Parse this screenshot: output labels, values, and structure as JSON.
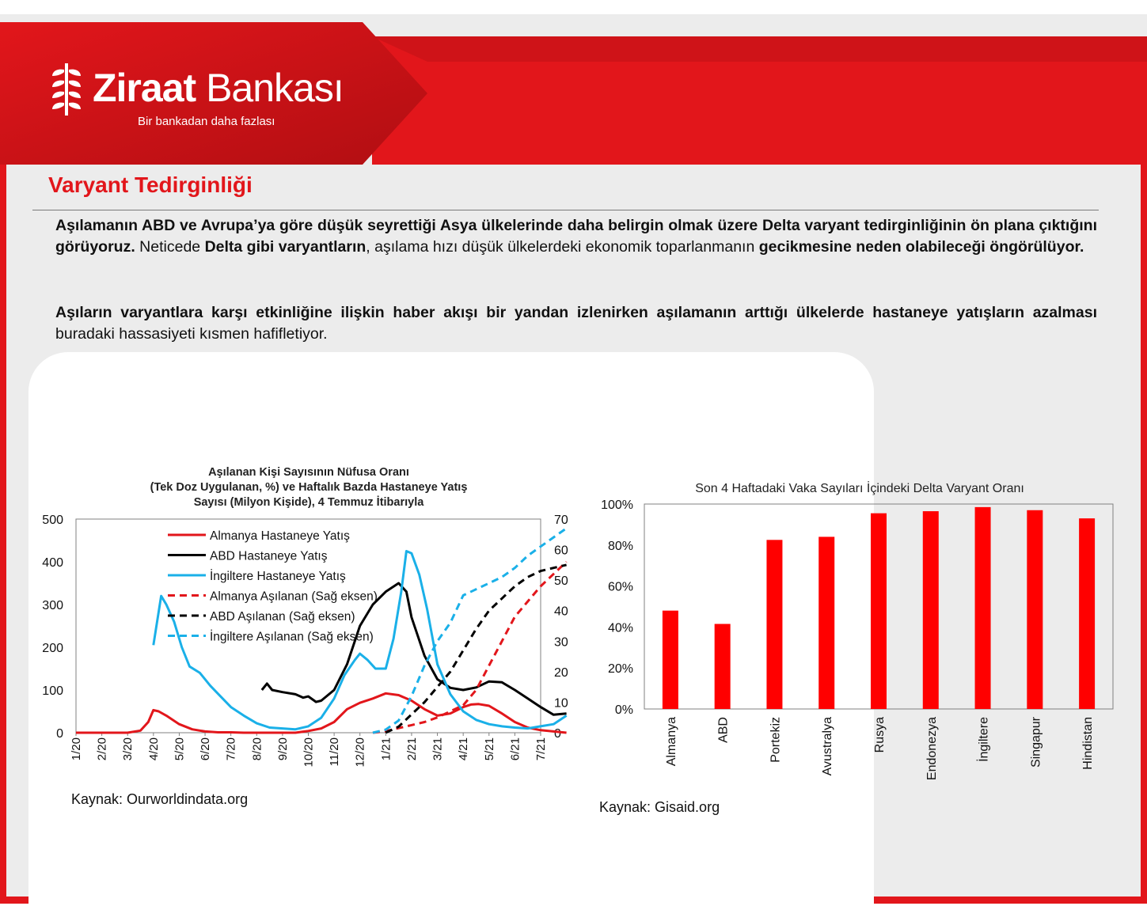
{
  "brand": {
    "bold": "Ziraat",
    "rest": " Bankası",
    "slogan": "Bir bankadan daha fazlası"
  },
  "title": "Varyant Tedirginliği",
  "paragraph1": [
    {
      "t": "Aşılamanın ABD ve Avrupa’ya göre düşük seyrettiği Asya ülkelerinde daha belirgin olmak üzere Delta varyant tedirginliğinin ön plana çıktığını görüyoruz.",
      "b": true
    },
    {
      "t": " Neticede ",
      "b": false
    },
    {
      "t": "Delta gibi varyantların",
      "b": true
    },
    {
      "t": ", aşılama hızı düşük ülkelerdeki ekonomik toparlanmanın ",
      "b": false
    },
    {
      "t": "gecikmesine neden olabileceği öngörülüyor.",
      "b": true
    }
  ],
  "paragraph2": [
    {
      "t": "Aşıların varyantlara karşı etkinliğine ilişkin haber akışı bir yandan izlenirken aşılamanın arttığı ülkelerde hastaneye yatışların azalması",
      "b": true
    },
    {
      "t": " buradaki hassasiyeti kısmen hafifletiyor.",
      "b": false
    }
  ],
  "source_left": "Kaynak: Ourworldindata.org",
  "source_right": "Kaynak: Gisaid.org",
  "colors": {
    "red": "#e2161b",
    "black": "#000000",
    "blue": "#1ab0e8",
    "bar": "#ff0000"
  },
  "chart_data": [
    {
      "type": "line",
      "title": [
        "Aşılanan Kişi Sayısının Nüfusa Oranı",
        "(Tek Doz Uygulanan, %) ve Haftalık Bazda Hastaneye Yatış",
        "Sayısı (Milyon Kişide), 4 Temmuz İtibarıyla"
      ],
      "categories": [
        "1/20",
        "2/20",
        "3/20",
        "4/20",
        "5/20",
        "6/20",
        "7/20",
        "8/20",
        "9/20",
        "10/20",
        "11/20",
        "12/20",
        "1/21",
        "2/21",
        "3/21",
        "4/21",
        "5/21",
        "6/21",
        "7/21"
      ],
      "ylim_left": [
        0,
        500
      ],
      "yticks_left": [
        0,
        100,
        200,
        300,
        400,
        500
      ],
      "ylim_right": [
        0,
        70
      ],
      "yticks_right": [
        0,
        10,
        20,
        30,
        40,
        50,
        60,
        70
      ],
      "legend_position": "top-left",
      "series": [
        {
          "name": "Almanya Hastaneye Yatış",
          "axis": "left",
          "dash": false,
          "color": "#e2161b",
          "x": [
            0,
            1,
            2,
            2.5,
            2.8,
            3,
            3.2,
            3.5,
            4,
            4.5,
            5,
            5.5,
            6,
            6.5,
            7,
            7.5,
            8,
            8.5,
            9,
            9.5,
            10,
            10.5,
            11,
            11.5,
            12,
            12.5,
            13,
            13.5,
            14,
            14.5,
            15,
            15.3,
            15.6,
            16,
            16.5,
            17,
            17.5,
            18,
            18.5,
            19
          ],
          "y": [
            0,
            0,
            0,
            5,
            25,
            53,
            50,
            40,
            20,
            8,
            3,
            1,
            1,
            0,
            0,
            0,
            0,
            0,
            4,
            10,
            25,
            55,
            70,
            80,
            92,
            88,
            75,
            55,
            40,
            45,
            60,
            66,
            67,
            63,
            45,
            25,
            12,
            6,
            3,
            0
          ]
        },
        {
          "name": "ABD Hastaneye Yatış",
          "axis": "left",
          "dash": false,
          "color": "#000000",
          "x": [
            7.2,
            7.4,
            7.6,
            8,
            8.5,
            8.8,
            9,
            9.3,
            9.5,
            10,
            10.5,
            11,
            11.5,
            12,
            12.5,
            12.8,
            13,
            13.5,
            14,
            14.5,
            15,
            15.5,
            16,
            16.5,
            17,
            17.5,
            18,
            18.5,
            19
          ],
          "y": [
            100,
            115,
            100,
            95,
            90,
            82,
            85,
            72,
            75,
            100,
            160,
            250,
            300,
            330,
            350,
            330,
            270,
            180,
            125,
            105,
            100,
            106,
            120,
            118,
            100,
            80,
            60,
            42,
            45
          ]
        },
        {
          "name": "İngiltere Hastaneye Yatış",
          "axis": "left",
          "dash": false,
          "color": "#1ab0e8",
          "x": [
            3,
            3.3,
            3.5,
            3.8,
            4.1,
            4.4,
            4.8,
            5.2,
            5.6,
            6,
            6.5,
            7,
            7.5,
            8,
            8.5,
            9,
            9.5,
            10,
            10.4,
            10.8,
            11,
            11.3,
            11.6,
            12,
            12.3,
            12.6,
            12.8,
            13,
            13.3,
            13.6,
            14,
            14.5,
            15,
            15.5,
            16,
            16.5,
            17,
            17.5,
            18,
            18.5,
            19
          ],
          "y": [
            205,
            320,
            300,
            260,
            200,
            155,
            140,
            110,
            85,
            60,
            40,
            22,
            12,
            10,
            8,
            15,
            35,
            80,
            135,
            170,
            185,
            170,
            150,
            150,
            220,
            330,
            425,
            420,
            370,
            290,
            160,
            90,
            50,
            30,
            20,
            15,
            12,
            10,
            15,
            20,
            40
          ]
        },
        {
          "name": "Almanya Aşılanan (Sağ eksen)",
          "axis": "right",
          "dash": true,
          "color": "#e2161b",
          "x": [
            11.5,
            12,
            12.5,
            13,
            13.5,
            14,
            14.5,
            15,
            15.5,
            16,
            16.5,
            17,
            17.5,
            18,
            18.5,
            19
          ],
          "y": [
            0,
            0.5,
            1.5,
            2.5,
            3.5,
            5,
            7,
            9,
            14,
            22,
            30,
            38,
            43,
            48,
            52,
            56
          ]
        },
        {
          "name": "ABD Aşılanan (Sağ eksen)",
          "axis": "right",
          "dash": true,
          "color": "#000000",
          "x": [
            12,
            12.5,
            13,
            13.5,
            14,
            14.5,
            15,
            15.5,
            16,
            16.5,
            17,
            17.5,
            18,
            18.5,
            19
          ],
          "y": [
            0,
            2,
            6,
            10,
            15,
            20,
            27,
            34,
            40,
            44,
            48,
            51,
            53,
            54,
            55
          ]
        },
        {
          "name": "İngiltere Aşılanan (Sağ eksen)",
          "axis": "right",
          "dash": true,
          "color": "#1ab0e8",
          "x": [
            11.5,
            12,
            12.5,
            13,
            13.5,
            14,
            14.5,
            15,
            15.5,
            16,
            16.5,
            17,
            17.5,
            18,
            18.5,
            19
          ],
          "y": [
            0,
            1,
            4,
            12,
            22,
            30,
            36,
            45,
            47,
            49,
            51,
            54,
            58,
            61,
            64,
            67
          ]
        }
      ]
    },
    {
      "type": "bar",
      "title": "Son 4 Haftadaki Vaka Sayıları İçindeki Delta Varyant Oranı",
      "categories": [
        "Almanya",
        "ABD",
        "Portekiz",
        "Avustralya",
        "Rusya",
        "Endonezya",
        "İngiltere",
        "Singapur",
        "Hindistan"
      ],
      "values": [
        48,
        41.5,
        82.5,
        84,
        95.5,
        96.5,
        98.5,
        97,
        93
      ],
      "ylim": [
        0,
        100
      ],
      "yticks": [
        "0%",
        "20%",
        "40%",
        "60%",
        "80%",
        "100%"
      ]
    }
  ]
}
